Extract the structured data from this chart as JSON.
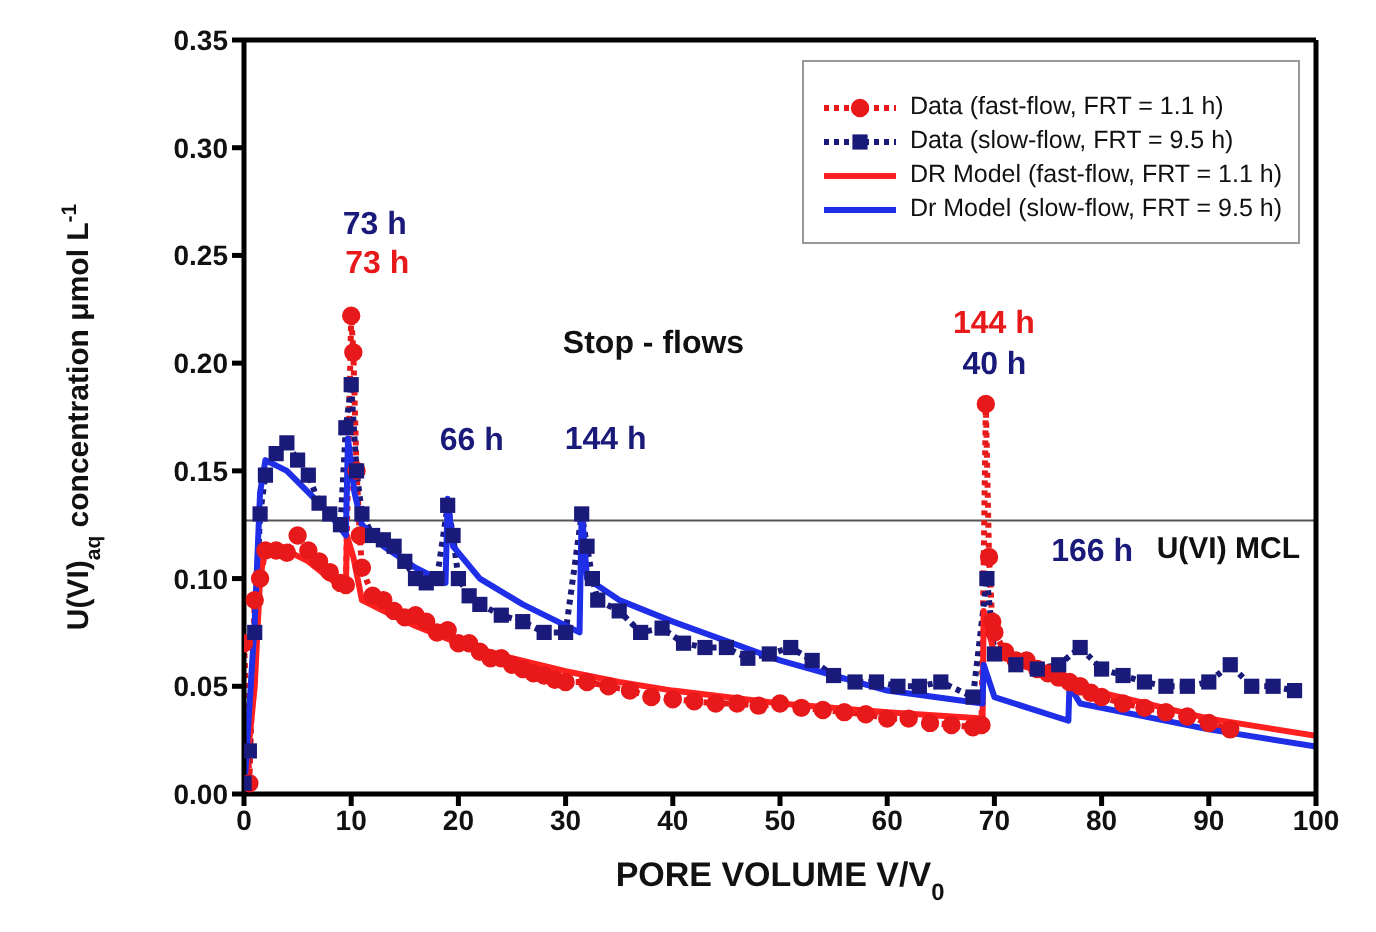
{
  "chart_data": {
    "type": "line",
    "xlabel": "PORE VOLUME  V/V$_{0}$",
    "ylabel": "U(VI)$_{aq}$ concentration  μmol L$^{-1}$",
    "xlim": [
      0,
      100
    ],
    "xticks": [
      0,
      10,
      20,
      30,
      40,
      50,
      60,
      70,
      80,
      90,
      100
    ],
    "ylim": [
      0,
      0.35
    ],
    "yticks": [
      {
        "value": 0,
        "label": "0.00"
      },
      {
        "value": 0.05,
        "label": "0.05"
      },
      {
        "value": 0.1,
        "label": "0.10"
      },
      {
        "value": 0.15,
        "label": "0.15"
      },
      {
        "value": 0.2,
        "label": "0.20"
      },
      {
        "value": 0.25,
        "label": "0.25"
      },
      {
        "value": 0.3,
        "label": "0.30"
      },
      {
        "value": 0.35,
        "label": "0.35"
      }
    ],
    "grid": false,
    "legend": "top right",
    "series": [
      {
        "name": "Data (fast-flow, FRT = 1.1 h)",
        "color": "#e8191a",
        "marker": "circle",
        "line_style": "dotted",
        "x": [
          0,
          0.5,
          1,
          1.5,
          2,
          3,
          4,
          5,
          6,
          7,
          8,
          9,
          9.5,
          10,
          10.2,
          10.5,
          10.8,
          11,
          12,
          13,
          14,
          15,
          16,
          17,
          18,
          19,
          20,
          21,
          22,
          23,
          24,
          25,
          26,
          27,
          28,
          29,
          30,
          32,
          34,
          36,
          38,
          40,
          42,
          44,
          46,
          48,
          50,
          52,
          54,
          56,
          58,
          60,
          62,
          64,
          66,
          68,
          68.8,
          69.2,
          69.5,
          69.8,
          70,
          71,
          72,
          73,
          74,
          75,
          76,
          77,
          78,
          79,
          80,
          82,
          84,
          86,
          88,
          90,
          92
        ],
        "values": [
          0.07,
          0.005,
          0.09,
          0.1,
          0.113,
          0.113,
          0.112,
          0.12,
          0.113,
          0.108,
          0.103,
          0.098,
          0.097,
          0.222,
          0.205,
          0.15,
          0.12,
          0.105,
          0.092,
          0.09,
          0.085,
          0.082,
          0.083,
          0.08,
          0.075,
          0.076,
          0.07,
          0.07,
          0.066,
          0.063,
          0.063,
          0.06,
          0.058,
          0.056,
          0.055,
          0.053,
          0.052,
          0.052,
          0.05,
          0.048,
          0.045,
          0.044,
          0.043,
          0.042,
          0.042,
          0.041,
          0.042,
          0.04,
          0.039,
          0.038,
          0.037,
          0.035,
          0.035,
          0.033,
          0.032,
          0.031,
          0.032,
          0.181,
          0.11,
          0.08,
          0.075,
          0.066,
          0.062,
          0.062,
          0.058,
          0.056,
          0.054,
          0.052,
          0.05,
          0.047,
          0.045,
          0.042,
          0.04,
          0.038,
          0.036,
          0.033,
          0.03
        ]
      },
      {
        "name": "Data (slow-flow, FRT = 9.5 h)",
        "color": "#1a1a7a",
        "marker": "square",
        "line_style": "dotted",
        "x": [
          0,
          0.5,
          1,
          1.5,
          2,
          3,
          4,
          5,
          6,
          7,
          8,
          9,
          9.5,
          10,
          10.5,
          11,
          12,
          13,
          14,
          15,
          16,
          17,
          18,
          19,
          19.5,
          20,
          21,
          22,
          24,
          26,
          28,
          30,
          31.5,
          32,
          32.5,
          33,
          35,
          37,
          39,
          41,
          43,
          45,
          47,
          49,
          51,
          53,
          55,
          57,
          59,
          61,
          63,
          65,
          68,
          69.3,
          70,
          72,
          74,
          76,
          78,
          80,
          82,
          84,
          86,
          88,
          90,
          92,
          94,
          96,
          98
        ],
        "values": [
          0.005,
          0.02,
          0.075,
          0.13,
          0.148,
          0.158,
          0.163,
          0.155,
          0.148,
          0.135,
          0.13,
          0.125,
          0.17,
          0.19,
          0.15,
          0.13,
          0.12,
          0.118,
          0.115,
          0.108,
          0.1,
          0.098,
          0.1,
          0.134,
          0.12,
          0.1,
          0.092,
          0.088,
          0.083,
          0.08,
          0.075,
          0.075,
          0.13,
          0.115,
          0.1,
          0.09,
          0.085,
          0.075,
          0.077,
          0.07,
          0.068,
          0.068,
          0.063,
          0.065,
          0.068,
          0.062,
          0.055,
          0.052,
          0.052,
          0.05,
          0.05,
          0.052,
          0.045,
          0.1,
          0.065,
          0.06,
          0.058,
          0.06,
          0.068,
          0.058,
          0.055,
          0.052,
          0.05,
          0.05,
          0.052,
          0.06,
          0.05,
          0.05,
          0.048
        ]
      },
      {
        "name": "DR Model (fast-flow, FRT = 1.1 h)",
        "color": "#ff2020",
        "marker": "none",
        "line_style": "solid",
        "x": [
          0,
          1,
          1.5,
          2,
          4,
          6,
          8,
          9.5,
          9.6,
          10.2,
          11,
          13,
          16,
          20,
          25,
          30,
          35,
          40,
          50,
          60,
          68.9,
          69,
          70,
          75,
          80,
          90,
          100
        ],
        "values": [
          0,
          0.05,
          0.1,
          0.115,
          0.113,
          0.108,
          0.1,
          0.095,
          0.12,
          0.11,
          0.09,
          0.085,
          0.078,
          0.07,
          0.063,
          0.057,
          0.052,
          0.048,
          0.042,
          0.038,
          0.035,
          0.085,
          0.065,
          0.055,
          0.047,
          0.035,
          0.027
        ]
      },
      {
        "name": "Dr Model (slow-flow, FRT = 9.5 h)",
        "color": "#1f2fe8",
        "marker": "none",
        "line_style": "solid",
        "x": [
          0,
          1,
          1.5,
          2,
          4,
          6,
          8,
          9.5,
          9.7,
          10.3,
          11,
          13,
          16,
          18.8,
          19,
          19.5,
          22,
          26,
          31.3,
          31.5,
          32,
          35,
          40,
          50,
          60,
          68.9,
          69,
          70,
          76.9,
          77,
          78,
          85,
          90,
          100
        ],
        "values": [
          0,
          0.08,
          0.14,
          0.155,
          0.15,
          0.14,
          0.13,
          0.12,
          0.165,
          0.14,
          0.125,
          0.115,
          0.105,
          0.098,
          0.137,
          0.115,
          0.1,
          0.088,
          0.075,
          0.132,
          0.1,
          0.09,
          0.08,
          0.062,
          0.048,
          0.042,
          0.06,
          0.045,
          0.034,
          0.05,
          0.042,
          0.035,
          0.03,
          0.022
        ]
      }
    ],
    "ref_lines": [
      {
        "axis": "y",
        "value": 0.127,
        "label": "U(VI) MCL",
        "color": "#555555"
      }
    ],
    "annotations": [
      "73 h",
      {
        "text": "73 h",
        "x": 10,
        "y": 0.222
      },
      {
        "text": "66 h",
        "x": 19,
        "y": 0.134
      },
      {
        "text": "144 h",
        "x": 31.5,
        "y": 0.13
      },
      "Stop - flows",
      {
        "text": "144 h",
        "x": 69.2,
        "y": 0.181
      },
      "40 h",
      {
        "text": "166 h",
        "x": 78,
        "y": 0.068
      }
    ]
  }
}
